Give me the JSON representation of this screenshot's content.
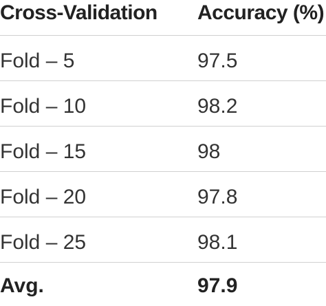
{
  "table": {
    "headers": [
      "Cross-Validation",
      "Accuracy (%)"
    ],
    "rows": [
      [
        "Fold – 5",
        "97.5"
      ],
      [
        "Fold – 10",
        "98.2"
      ],
      [
        "Fold – 15",
        "98"
      ],
      [
        "Fold – 20",
        "97.8"
      ],
      [
        "Fold – 25",
        "98.1"
      ]
    ],
    "footer": [
      "Avg.",
      "97.9"
    ]
  }
}
